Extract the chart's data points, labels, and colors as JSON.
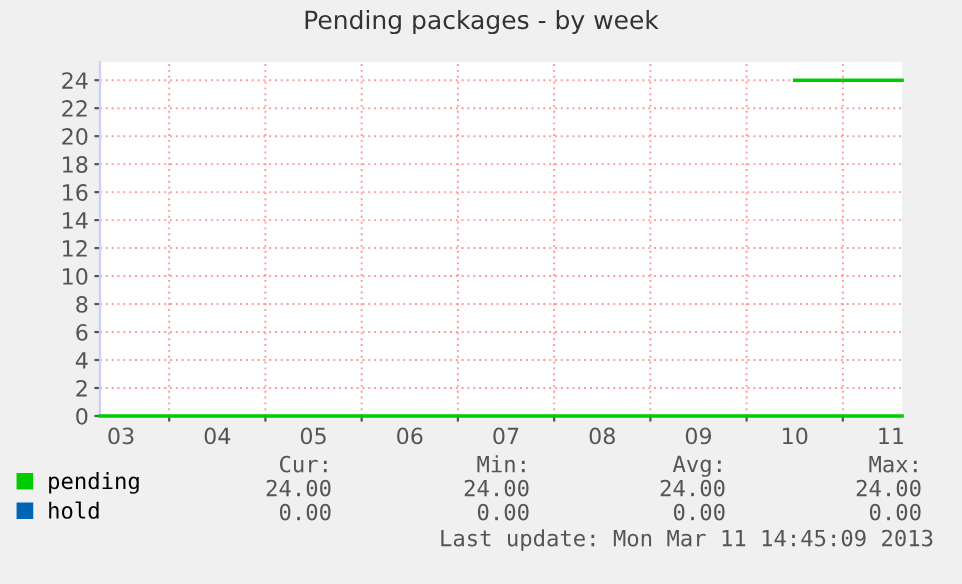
{
  "chart_data": {
    "type": "line",
    "title": "Pending packages - by week",
    "xlim": [
      "2013-03-03T06:45",
      "2013-03-11T14:45"
    ],
    "xticks": [
      {
        "value": "2013-03-03T12:00",
        "label": "03"
      },
      {
        "value": "2013-03-04T00:00",
        "label": null
      },
      {
        "value": "2013-03-04T12:00",
        "label": "04"
      },
      {
        "value": "2013-03-05T00:00",
        "label": null
      },
      {
        "value": "2013-03-05T12:00",
        "label": "05"
      },
      {
        "value": "2013-03-06T00:00",
        "label": null
      },
      {
        "value": "2013-03-06T12:00",
        "label": "06"
      },
      {
        "value": "2013-03-07T00:00",
        "label": null
      },
      {
        "value": "2013-03-07T12:00",
        "label": "07"
      },
      {
        "value": "2013-03-08T00:00",
        "label": null
      },
      {
        "value": "2013-03-08T12:00",
        "label": "08"
      },
      {
        "value": "2013-03-09T00:00",
        "label": null
      },
      {
        "value": "2013-03-09T12:00",
        "label": "09"
      },
      {
        "value": "2013-03-10T00:00",
        "label": null
      },
      {
        "value": "2013-03-10T12:00",
        "label": "10"
      },
      {
        "value": "2013-03-11T00:00",
        "label": null
      },
      {
        "value": "2013-03-11T12:00",
        "label": "11"
      }
    ],
    "ylim": [
      0,
      25.3
    ],
    "yticks": [
      0,
      2,
      4,
      6,
      8,
      10,
      12,
      14,
      16,
      18,
      20,
      22,
      24
    ],
    "grid": true,
    "legend": "bottom left",
    "series": [
      {
        "name": "pending",
        "color": "#00cc00",
        "x": [
          "2013-03-10T12:00",
          "2013-03-11T14:45"
        ],
        "values": [
          24,
          24
        ]
      },
      {
        "name": "hold",
        "color": "#0066b3"
      },
      {
        "color": "#00cc00",
        "x": [
          "2013-03-03T06:45",
          "2013-03-11T14:45"
        ],
        "values": [
          0,
          0
        ]
      }
    ],
    "annotations": [
      "Cur:",
      "Min:",
      "Avg:",
      "Max:",
      "24.00",
      "24.00",
      "24.00",
      "24.00",
      "0.00",
      "0.00",
      "0.00",
      "0.00",
      "Last update: Mon Mar 11 14:45:09 2013"
    ]
  }
}
